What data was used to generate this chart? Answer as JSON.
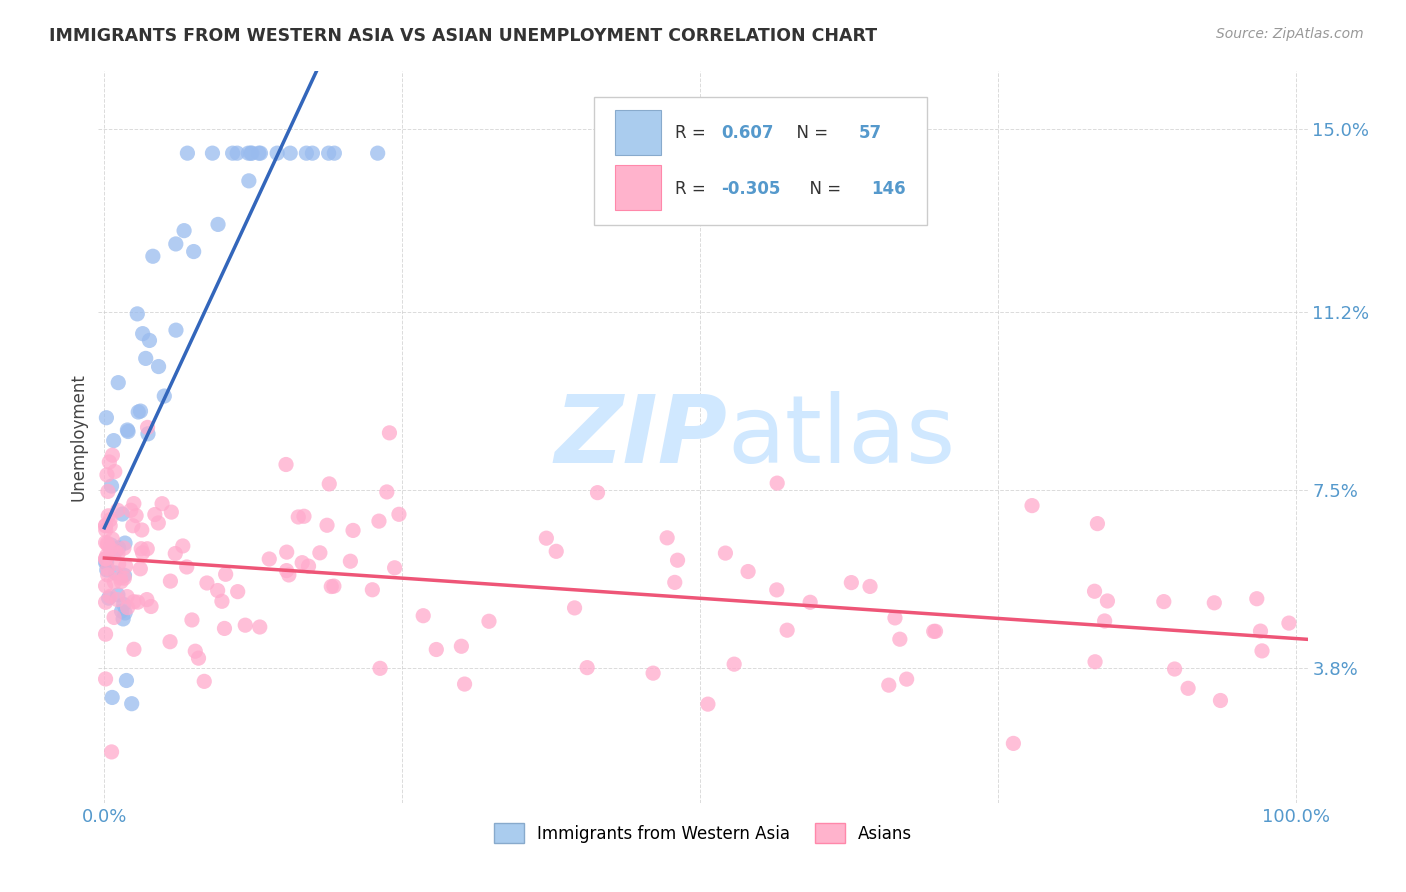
{
  "title": "IMMIGRANTS FROM WESTERN ASIA VS ASIAN UNEMPLOYMENT CORRELATION CHART",
  "source": "Source: ZipAtlas.com",
  "ylabel": "Unemployment",
  "y_tick_vals": [
    0.038,
    0.075,
    0.112,
    0.15
  ],
  "y_tick_labels": [
    "3.8%",
    "7.5%",
    "11.2%",
    "15.0%"
  ],
  "x_tick_vals": [
    0.0,
    0.25,
    0.5,
    0.75,
    1.0
  ],
  "x_tick_labels": [
    "0.0%",
    "",
    "",
    "",
    "100.0%"
  ],
  "blue_R": "0.607",
  "blue_N": "57",
  "pink_R": "-0.305",
  "pink_N": "146",
  "blue_line_color": "#3366BB",
  "pink_line_color": "#EE5577",
  "blue_scatter_color": "#99BBEE",
  "pink_scatter_color": "#FFAACC",
  "legend_label_blue": "Immigrants from Western Asia",
  "legend_label_pink": "Asians",
  "watermark_zip": "ZIP",
  "watermark_atlas": "atlas",
  "watermark_color": "#D0E8FF",
  "background_color": "#FFFFFF",
  "grid_color": "#CCCCCC",
  "tick_color": "#5599CC",
  "title_color": "#333333",
  "source_color": "#999999",
  "ylabel_color": "#444444",
  "xlim": [
    -0.005,
    1.01
  ],
  "ylim": [
    0.01,
    0.162
  ]
}
